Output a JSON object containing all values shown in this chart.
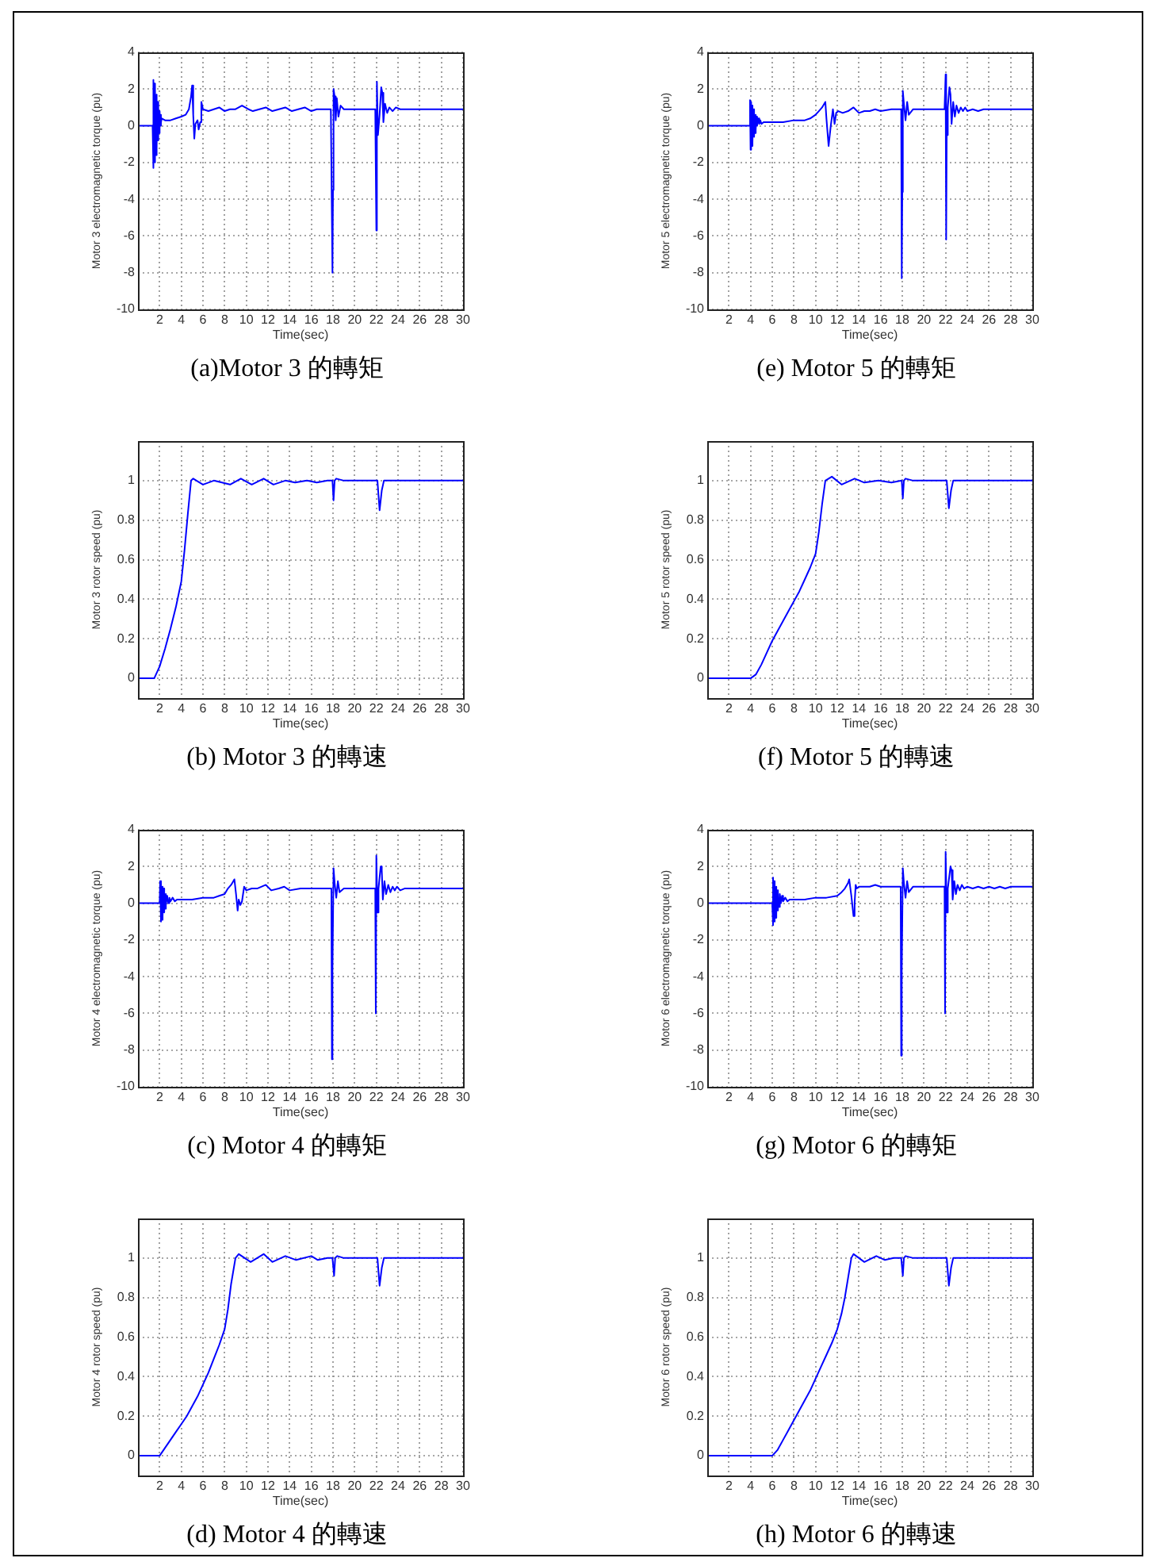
{
  "chart_data": [
    {
      "type": "line",
      "title": "(a)Motor 3 的轉矩",
      "xlabel": "Time(sec)",
      "ylabel": "Motor 3 electromagnetic torque (pu)",
      "xlim": [
        0,
        30
      ],
      "ylim": [
        -10,
        4
      ],
      "xticks": [
        2,
        4,
        6,
        8,
        10,
        12,
        14,
        16,
        18,
        20,
        22,
        24,
        26,
        28,
        30
      ],
      "yticks": [
        -10,
        -8,
        -6,
        -4,
        -2,
        0,
        2,
        4
      ],
      "grid": true,
      "x": [
        0,
        1.35,
        1.4,
        1.45,
        1.5,
        1.55,
        1.6,
        1.65,
        1.7,
        1.75,
        1.8,
        1.85,
        1.9,
        1.95,
        2.0,
        2.05,
        2.1,
        2.15,
        2.2,
        2.5,
        3,
        3.5,
        4,
        4.4,
        4.7,
        4.9,
        5.0,
        5.1,
        5.2,
        5.3,
        5.5,
        5.6,
        5.75,
        5.85,
        6.0,
        6.5,
        7,
        7.5,
        8,
        8.5,
        9,
        9.6,
        10.2,
        10.6,
        11.2,
        11.8,
        12.4,
        13,
        13.6,
        14.2,
        14.8,
        15.4,
        16,
        16.5,
        17,
        17.8,
        17.95,
        18.0,
        18.05,
        18.15,
        18.25,
        18.35,
        18.5,
        18.7,
        19,
        20,
        21.9,
        22.0,
        22.05,
        22.15,
        22.3,
        22.45,
        22.55,
        22.65,
        22.8,
        23,
        23.2,
        23.5,
        23.8,
        24.2,
        30
      ],
      "series": [
        {
          "color": "#0000ff",
          "values": [
            0,
            0,
            2.5,
            -2.3,
            2.3,
            -2.0,
            2.0,
            -1.6,
            1.7,
            -1.2,
            1.3,
            -0.8,
            1.0,
            -0.4,
            0.8,
            0,
            0.6,
            0.2,
            0.4,
            0.3,
            0.3,
            0.4,
            0.5,
            0.6,
            0.9,
            1.6,
            2.2,
            0.6,
            -0.7,
            0.1,
            0.3,
            -0.2,
            0.2,
            1.3,
            0.9,
            0.8,
            0.9,
            1.0,
            0.8,
            0.9,
            0.9,
            1.1,
            0.9,
            0.8,
            0.9,
            1.0,
            0.8,
            0.9,
            1.0,
            0.8,
            0.9,
            1.0,
            0.8,
            0.9,
            0.9,
            0.9,
            -8,
            -3.5,
            2.0,
            1.6,
            0.3,
            1.5,
            0.5,
            1.1,
            0.9,
            0.9,
            0.9,
            -5.7,
            2.4,
            -0.5,
            0.6,
            2.1,
            1.8,
            0.2,
            1.2,
            0.7,
            1.0,
            0.8,
            1.0,
            0.9,
            0.9
          ]
        }
      ]
    },
    {
      "type": "line",
      "title": "(e) Motor 5 的轉矩",
      "xlabel": "Time(sec)",
      "ylabel": "Motor 5 electromagnetic torque (pu)",
      "xlim": [
        0,
        30
      ],
      "ylim": [
        -10,
        4
      ],
      "xticks": [
        2,
        4,
        6,
        8,
        10,
        12,
        14,
        16,
        18,
        20,
        22,
        24,
        26,
        28,
        30
      ],
      "yticks": [
        -10,
        -8,
        -6,
        -4,
        -2,
        0,
        2,
        4
      ],
      "grid": true,
      "x": [
        0,
        3.9,
        3.95,
        4.0,
        4.05,
        4.1,
        4.15,
        4.2,
        4.25,
        4.3,
        4.35,
        4.4,
        4.45,
        4.5,
        4.55,
        4.6,
        4.7,
        4.8,
        4.9,
        5.0,
        5.2,
        5.5,
        6,
        7,
        8,
        9,
        9.5,
        10,
        10.3,
        10.6,
        10.9,
        11.0,
        11.2,
        11.4,
        11.6,
        11.75,
        11.9,
        12.1,
        12.5,
        13,
        13.5,
        14,
        14.5,
        15,
        15.5,
        16,
        17,
        17.9,
        17.95,
        18.0,
        18.05,
        18.15,
        18.3,
        18.45,
        18.6,
        19,
        21.9,
        22.0,
        22.05,
        22.1,
        22.2,
        22.35,
        22.45,
        22.55,
        22.7,
        22.85,
        23,
        23.2,
        23.4,
        23.6,
        23.8,
        24,
        24.5,
        25,
        25.5,
        26,
        30
      ],
      "series": [
        {
          "color": "#0000ff",
          "values": [
            0,
            0,
            1.4,
            -1.3,
            1.3,
            -1.1,
            1.1,
            -0.9,
            0.9,
            -0.6,
            0.7,
            -0.4,
            0.6,
            -0.2,
            0.5,
            0,
            0.4,
            0.1,
            0.3,
            0.1,
            0.2,
            0.2,
            0.2,
            0.2,
            0.3,
            0.3,
            0.4,
            0.6,
            0.8,
            1.0,
            1.3,
            0.4,
            -1.1,
            0,
            0.9,
            0.1,
            0.7,
            0.8,
            0.7,
            0.8,
            1.0,
            0.7,
            0.8,
            0.8,
            0.9,
            0.8,
            0.9,
            0.9,
            -8.3,
            -3.6,
            1.9,
            1.2,
            0.3,
            1.3,
            0.6,
            0.9,
            0.9,
            2.8,
            -6.2,
            -0.5,
            1.0,
            2.1,
            1.7,
            0.1,
            1.3,
            0.5,
            1.1,
            0.7,
            1.0,
            0.8,
            1.0,
            0.8,
            0.9,
            0.8,
            0.9,
            0.9,
            0.9
          ]
        }
      ]
    },
    {
      "type": "line",
      "title": "(b) Motor 3 的轉速",
      "xlabel": "Time(sec)",
      "ylabel": "Motor 3 rotor speed (pu)",
      "xlim": [
        0,
        30
      ],
      "ylim": [
        -0.1,
        1.2
      ],
      "xticks": [
        2,
        4,
        6,
        8,
        10,
        12,
        14,
        16,
        18,
        20,
        22,
        24,
        26,
        28,
        30
      ],
      "yticks": [
        0,
        0.2,
        0.4,
        0.6,
        0.8,
        1
      ],
      "grid": true,
      "x": [
        0,
        1.5,
        2,
        2.5,
        3,
        3.5,
        4,
        4.3,
        4.6,
        4.9,
        5.1,
        5.4,
        6,
        7,
        8.5,
        9.5,
        10.5,
        11.6,
        12.5,
        13.6,
        14.5,
        15.6,
        16.5,
        17.5,
        17.95,
        18.05,
        18.15,
        18.3,
        19,
        22.1,
        22.3,
        22.5,
        22.7,
        23,
        30
      ],
      "series": [
        {
          "color": "#0000ff",
          "values": [
            0,
            0,
            0.06,
            0.15,
            0.25,
            0.36,
            0.49,
            0.65,
            0.83,
            1.0,
            1.01,
            1.0,
            0.98,
            1.0,
            0.98,
            1.01,
            0.98,
            1.01,
            0.98,
            1.0,
            0.99,
            1.0,
            0.99,
            1.0,
            1.0,
            0.9,
            1.0,
            1.01,
            1.0,
            1.0,
            0.85,
            0.95,
            1.0,
            1.0,
            1.0
          ]
        }
      ]
    },
    {
      "type": "line",
      "title": "(f) Motor 5 的轉速",
      "xlabel": "Time(sec)",
      "ylabel": "Motor 5 rotor speed (pu)",
      "xlim": [
        0,
        30
      ],
      "ylim": [
        -0.1,
        1.2
      ],
      "xticks": [
        2,
        4,
        6,
        8,
        10,
        12,
        14,
        16,
        18,
        20,
        22,
        24,
        26,
        28,
        30
      ],
      "yticks": [
        0,
        0.2,
        0.4,
        0.6,
        0.8,
        1
      ],
      "grid": true,
      "x": [
        0,
        4,
        4.5,
        5,
        5.5,
        6,
        6.5,
        7,
        7.5,
        8,
        8.5,
        9,
        9.5,
        10,
        10.3,
        10.6,
        10.9,
        11.5,
        12.4,
        13.6,
        14.5,
        15.8,
        17,
        17.95,
        18.05,
        18.15,
        18.3,
        19,
        22.1,
        22.3,
        22.5,
        22.7,
        23,
        30
      ],
      "series": [
        {
          "color": "#0000ff",
          "values": [
            0,
            0,
            0.02,
            0.07,
            0.13,
            0.19,
            0.24,
            0.29,
            0.34,
            0.39,
            0.44,
            0.5,
            0.56,
            0.63,
            0.74,
            0.88,
            1.0,
            1.02,
            0.98,
            1.01,
            0.99,
            1.0,
            0.99,
            1.0,
            0.91,
            1.0,
            1.01,
            1.0,
            1.0,
            0.86,
            0.95,
            1.0,
            1.0,
            1.0
          ]
        }
      ]
    },
    {
      "type": "line",
      "title": "(c) Motor 4 的轉矩",
      "xlabel": "Time(sec)",
      "ylabel": "Motor 4 electromagnetic torque (pu)",
      "xlim": [
        0,
        30
      ],
      "ylim": [
        -10,
        4
      ],
      "xticks": [
        2,
        4,
        6,
        8,
        10,
        12,
        14,
        16,
        18,
        20,
        22,
        24,
        26,
        28,
        30
      ],
      "yticks": [
        -10,
        -8,
        -6,
        -4,
        -2,
        0,
        2,
        4
      ],
      "grid": true,
      "x": [
        0,
        2.0,
        2.05,
        2.1,
        2.15,
        2.2,
        2.25,
        2.3,
        2.35,
        2.4,
        2.45,
        2.5,
        2.55,
        2.6,
        2.7,
        2.8,
        2.9,
        3.0,
        3.2,
        3.4,
        3.6,
        4,
        5,
        6,
        7,
        7.5,
        8,
        8.3,
        8.6,
        8.9,
        9.05,
        9.2,
        9.3,
        9.45,
        9.6,
        9.8,
        10,
        10.5,
        11,
        11.8,
        12.3,
        13,
        13.5,
        14,
        15,
        15.5,
        16,
        17,
        17.85,
        17.9,
        17.95,
        18.05,
        18.15,
        18.3,
        18.45,
        18.6,
        19,
        21.9,
        21.95,
        22.0,
        22.1,
        22.2,
        22.4,
        22.5,
        22.6,
        22.75,
        22.9,
        23.1,
        23.3,
        23.5,
        23.7,
        23.9,
        24.2,
        24.6,
        25,
        30
      ],
      "series": [
        {
          "color": "#0000ff",
          "values": [
            0,
            0,
            1.2,
            -1.0,
            1.1,
            -0.9,
            0.9,
            -0.7,
            0.8,
            -0.5,
            0.6,
            -0.3,
            0.5,
            -0.1,
            0.4,
            0,
            0.3,
            0.1,
            0.3,
            0.1,
            0.2,
            0.2,
            0.2,
            0.3,
            0.3,
            0.4,
            0.5,
            0.8,
            1.0,
            1.3,
            0.5,
            -0.4,
            0.2,
            -0.1,
            0.1,
            0.9,
            0.7,
            0.8,
            0.8,
            1.0,
            0.7,
            0.8,
            0.9,
            0.7,
            0.8,
            0.8,
            0.8,
            0.8,
            0.8,
            -8.5,
            -3.7,
            1.9,
            1.1,
            0.3,
            1.2,
            0.6,
            0.8,
            0.8,
            -6.0,
            2.6,
            -0.5,
            0.8,
            2.0,
            1.8,
            0.2,
            1.2,
            0.5,
            1.0,
            0.6,
            0.9,
            0.7,
            0.9,
            0.7,
            0.8,
            0.8,
            0.8
          ]
        }
      ]
    },
    {
      "type": "line",
      "title": "(g) Motor 6 的轉矩",
      "xlabel": "Time(sec)",
      "ylabel": "Motor 6 electromagnetic torque (pu)",
      "xlim": [
        0,
        30
      ],
      "ylim": [
        -10,
        4
      ],
      "xticks": [
        2,
        4,
        6,
        8,
        10,
        12,
        14,
        16,
        18,
        20,
        22,
        24,
        26,
        28,
        30
      ],
      "yticks": [
        -10,
        -8,
        -6,
        -4,
        -2,
        0,
        2,
        4
      ],
      "grid": true,
      "x": [
        0,
        6.0,
        6.05,
        6.1,
        6.15,
        6.2,
        6.25,
        6.3,
        6.35,
        6.4,
        6.45,
        6.5,
        6.55,
        6.6,
        6.7,
        6.8,
        6.9,
        7.0,
        7.2,
        7.4,
        7.6,
        8,
        9,
        10,
        11,
        12,
        12.4,
        12.7,
        13.0,
        13.1,
        13.3,
        13.5,
        13.6,
        13.7,
        13.8,
        14,
        14.5,
        15,
        15.5,
        16,
        17,
        17.85,
        17.9,
        17.95,
        18.05,
        18.15,
        18.3,
        18.45,
        18.6,
        19,
        21.9,
        21.95,
        22.0,
        22.1,
        22.2,
        22.45,
        22.55,
        22.65,
        22.8,
        22.95,
        23.1,
        23.3,
        23.5,
        23.7,
        24,
        24.5,
        25,
        25.5,
        26,
        26.5,
        27,
        27.5,
        28,
        30
      ],
      "series": [
        {
          "color": "#0000ff",
          "values": [
            0,
            0,
            1.4,
            -1.2,
            1.2,
            -1.0,
            1.0,
            -0.8,
            0.9,
            -0.6,
            0.7,
            -0.4,
            0.6,
            -0.2,
            0.5,
            0,
            0.4,
            0.1,
            0.3,
            0.1,
            0.2,
            0.2,
            0.2,
            0.3,
            0.3,
            0.4,
            0.6,
            0.8,
            1.1,
            1.3,
            0.4,
            -0.7,
            0,
            1.0,
            0.8,
            0.9,
            0.9,
            0.9,
            1.0,
            0.9,
            0.9,
            0.9,
            -8.3,
            -3.7,
            1.9,
            1.1,
            0.3,
            1.2,
            0.6,
            0.9,
            0.9,
            -6.0,
            2.8,
            -0.5,
            0.8,
            2.0,
            1.8,
            0.2,
            1.2,
            0.5,
            1.0,
            0.7,
            1.0,
            0.8,
            0.9,
            0.8,
            0.9,
            0.8,
            0.9,
            0.8,
            0.9,
            0.8,
            0.9,
            0.9
          ]
        }
      ]
    },
    {
      "type": "line",
      "title": "(d) Motor 4 的轉速",
      "xlabel": "Time(sec)",
      "ylabel": "Motor 4 rotor speed (pu)",
      "xlim": [
        0,
        30
      ],
      "ylim": [
        -0.1,
        1.2
      ],
      "xticks": [
        2,
        4,
        6,
        8,
        10,
        12,
        14,
        16,
        18,
        20,
        22,
        24,
        26,
        28,
        30
      ],
      "yticks": [
        0,
        0.2,
        0.4,
        0.6,
        0.8,
        1
      ],
      "grid": true,
      "x": [
        0,
        2,
        2.5,
        3,
        3.5,
        4,
        4.5,
        5,
        5.5,
        6,
        6.5,
        7,
        7.5,
        8,
        8.3,
        8.6,
        9.0,
        9.3,
        10.4,
        11.6,
        12.4,
        13.6,
        14.6,
        16.0,
        16.6,
        17.5,
        17.95,
        18.1,
        18.2,
        18.4,
        19,
        22.1,
        22.3,
        22.5,
        22.7,
        23,
        30
      ],
      "series": [
        {
          "color": "#0000ff",
          "values": [
            0,
            0,
            0.04,
            0.08,
            0.12,
            0.16,
            0.2,
            0.25,
            0.3,
            0.36,
            0.42,
            0.49,
            0.56,
            0.64,
            0.74,
            0.87,
            1.0,
            1.02,
            0.98,
            1.02,
            0.98,
            1.01,
            0.99,
            1.01,
            0.99,
            1.0,
            1.0,
            0.91,
            1.0,
            1.01,
            1.0,
            1.0,
            0.86,
            0.95,
            1.0,
            1.0,
            1.0
          ]
        }
      ]
    },
    {
      "type": "line",
      "title": "(h) Motor 6 的轉速",
      "xlabel": "Time(sec)",
      "ylabel": "Motor 6 rotor speed (pu)",
      "xlim": [
        0,
        30
      ],
      "ylim": [
        -0.1,
        1.2
      ],
      "xticks": [
        2,
        4,
        6,
        8,
        10,
        12,
        14,
        16,
        18,
        20,
        22,
        24,
        26,
        28,
        30
      ],
      "yticks": [
        0,
        0.2,
        0.4,
        0.6,
        0.8,
        1
      ],
      "grid": true,
      "x": [
        0,
        6,
        6.5,
        7,
        7.5,
        8,
        8.5,
        9,
        9.5,
        10,
        10.5,
        11,
        11.5,
        12,
        12.4,
        12.7,
        13.0,
        13.3,
        13.5,
        14.5,
        15.6,
        16.4,
        17.2,
        17.9,
        18.05,
        18.15,
        18.3,
        19,
        22.1,
        22.3,
        22.5,
        22.7,
        23,
        30
      ],
      "series": [
        {
          "color": "#0000ff",
          "values": [
            0,
            0,
            0.03,
            0.08,
            0.13,
            0.18,
            0.23,
            0.28,
            0.33,
            0.39,
            0.45,
            0.51,
            0.57,
            0.64,
            0.72,
            0.8,
            0.9,
            1.0,
            1.02,
            0.98,
            1.01,
            0.99,
            1.0,
            1.0,
            0.91,
            1.0,
            1.01,
            1.0,
            1.0,
            0.86,
            0.95,
            1.0,
            1.0,
            1.0
          ]
        }
      ]
    }
  ]
}
